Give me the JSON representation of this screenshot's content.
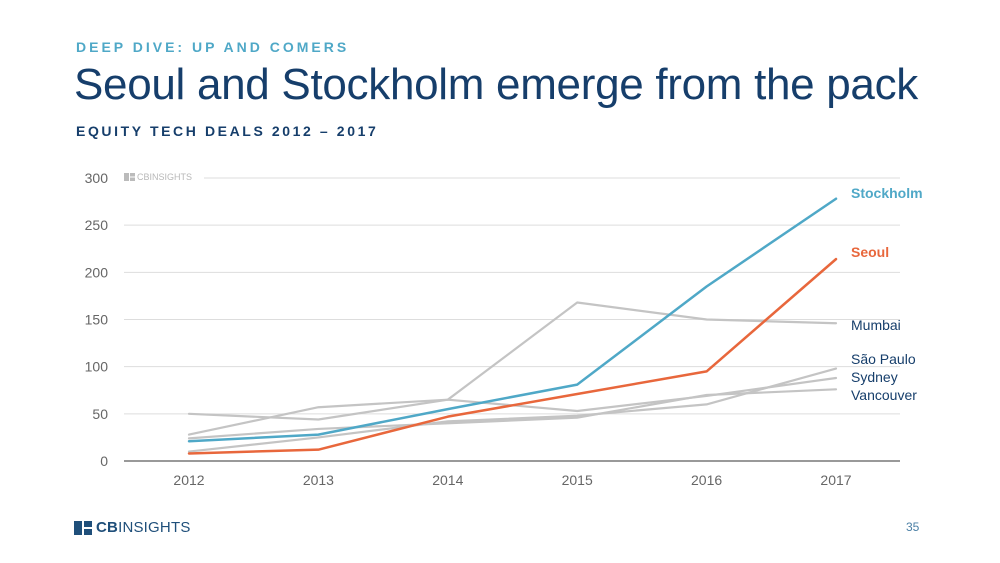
{
  "header": {
    "eyebrow": "DEEP DIVE: UP AND COMERS",
    "title": "Seoul and Stockholm emerge from the pack",
    "subtitle": "EQUITY TECH DEALS 2012 – 2017"
  },
  "watermark": {
    "text": "CBINSIGHTS",
    "icon": "cbinsights-logo-icon"
  },
  "footer": {
    "brand_bold": "CB",
    "brand_rest": "INSIGHTS",
    "page_number": "35",
    "icon": "cbinsights-logo-icon"
  },
  "colors": {
    "stockholm": "#4fa8c7",
    "seoul": "#e8673c",
    "other": "#c4c4c4",
    "label_dark": "#163e6b",
    "grid": "#dddddd"
  },
  "chart_data": {
    "type": "line",
    "x": [
      "2012",
      "2013",
      "2014",
      "2015",
      "2016",
      "2017"
    ],
    "ylim": [
      0,
      300
    ],
    "yticks": [
      0,
      50,
      100,
      150,
      200,
      250,
      300
    ],
    "grid": true,
    "legend": "direct labels at right",
    "series": [
      {
        "name": "Stockholm",
        "values": [
          21,
          28,
          55,
          81,
          185,
          278
        ],
        "highlight": true,
        "color": "#4fa8c7"
      },
      {
        "name": "Seoul",
        "values": [
          8,
          12,
          47,
          71,
          95,
          214
        ],
        "highlight": true,
        "color": "#e8673c"
      },
      {
        "name": "Mumbai",
        "values": [
          28,
          57,
          65,
          168,
          150,
          146
        ],
        "highlight": false,
        "color": "#c4c4c4"
      },
      {
        "name": "São Paulo",
        "values": [
          10,
          25,
          42,
          48,
          60,
          98
        ],
        "highlight": false,
        "color": "#c4c4c4"
      },
      {
        "name": "Sydney",
        "values": [
          50,
          44,
          65,
          53,
          69,
          88
        ],
        "highlight": false,
        "color": "#c4c4c4"
      },
      {
        "name": "Vancouver",
        "values": [
          24,
          34,
          40,
          46,
          70,
          76
        ],
        "highlight": false,
        "color": "#c4c4c4"
      }
    ]
  }
}
